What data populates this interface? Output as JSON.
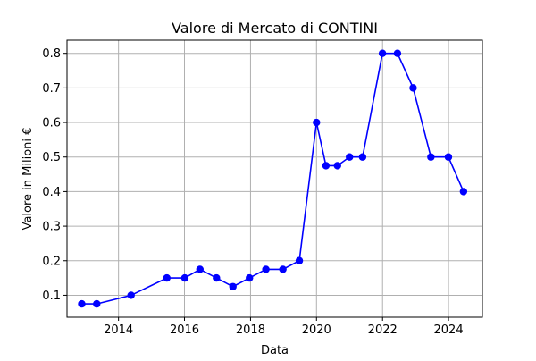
{
  "chart_data": {
    "type": "line",
    "title": "Valore di Mercato di CONTINI",
    "xlabel": "Data",
    "ylabel": "Valore in Milioni €",
    "x_type": "date",
    "xlim": [
      "2012-06-10",
      "2025-01-10"
    ],
    "ylim": [
      0.0365,
      0.838
    ],
    "x_ticks": [
      {
        "value": "2014-01-01",
        "label": "2014"
      },
      {
        "value": "2016-01-01",
        "label": "2016"
      },
      {
        "value": "2018-01-01",
        "label": "2018"
      },
      {
        "value": "2020-01-01",
        "label": "2020"
      },
      {
        "value": "2022-01-01",
        "label": "2022"
      },
      {
        "value": "2024-01-01",
        "label": "2024"
      }
    ],
    "y_ticks": [
      {
        "value": 0.1,
        "label": "0.1"
      },
      {
        "value": 0.2,
        "label": "0.2"
      },
      {
        "value": 0.3,
        "label": "0.3"
      },
      {
        "value": 0.4,
        "label": "0.4"
      },
      {
        "value": 0.5,
        "label": "0.5"
      },
      {
        "value": 0.6,
        "label": "0.6"
      },
      {
        "value": 0.7,
        "label": "0.7"
      },
      {
        "value": 0.8,
        "label": "0.8"
      }
    ],
    "grid": true,
    "legend": "none",
    "color": "#0000ff",
    "marker": "circle",
    "series": [
      {
        "points": [
          {
            "x": "2012-11-20",
            "y": 0.075
          },
          {
            "x": "2013-05-05",
            "y": 0.075
          },
          {
            "x": "2014-05-20",
            "y": 0.1
          },
          {
            "x": "2015-06-20",
            "y": 0.15
          },
          {
            "x": "2016-01-05",
            "y": 0.15
          },
          {
            "x": "2016-06-20",
            "y": 0.175
          },
          {
            "x": "2016-12-20",
            "y": 0.15
          },
          {
            "x": "2017-06-20",
            "y": 0.125
          },
          {
            "x": "2017-12-20",
            "y": 0.15
          },
          {
            "x": "2018-06-20",
            "y": 0.175
          },
          {
            "x": "2018-12-25",
            "y": 0.175
          },
          {
            "x": "2019-06-25",
            "y": 0.2
          },
          {
            "x": "2020-01-01",
            "y": 0.6
          },
          {
            "x": "2020-04-15",
            "y": 0.475
          },
          {
            "x": "2020-08-20",
            "y": 0.475
          },
          {
            "x": "2020-12-31",
            "y": 0.5
          },
          {
            "x": "2021-05-25",
            "y": 0.5
          },
          {
            "x": "2021-12-31",
            "y": 0.8
          },
          {
            "x": "2022-06-15",
            "y": 0.8
          },
          {
            "x": "2022-12-05",
            "y": 0.7
          },
          {
            "x": "2023-06-20",
            "y": 0.5
          },
          {
            "x": "2023-12-31",
            "y": 0.5
          },
          {
            "x": "2024-06-15",
            "y": 0.4
          }
        ]
      }
    ]
  }
}
